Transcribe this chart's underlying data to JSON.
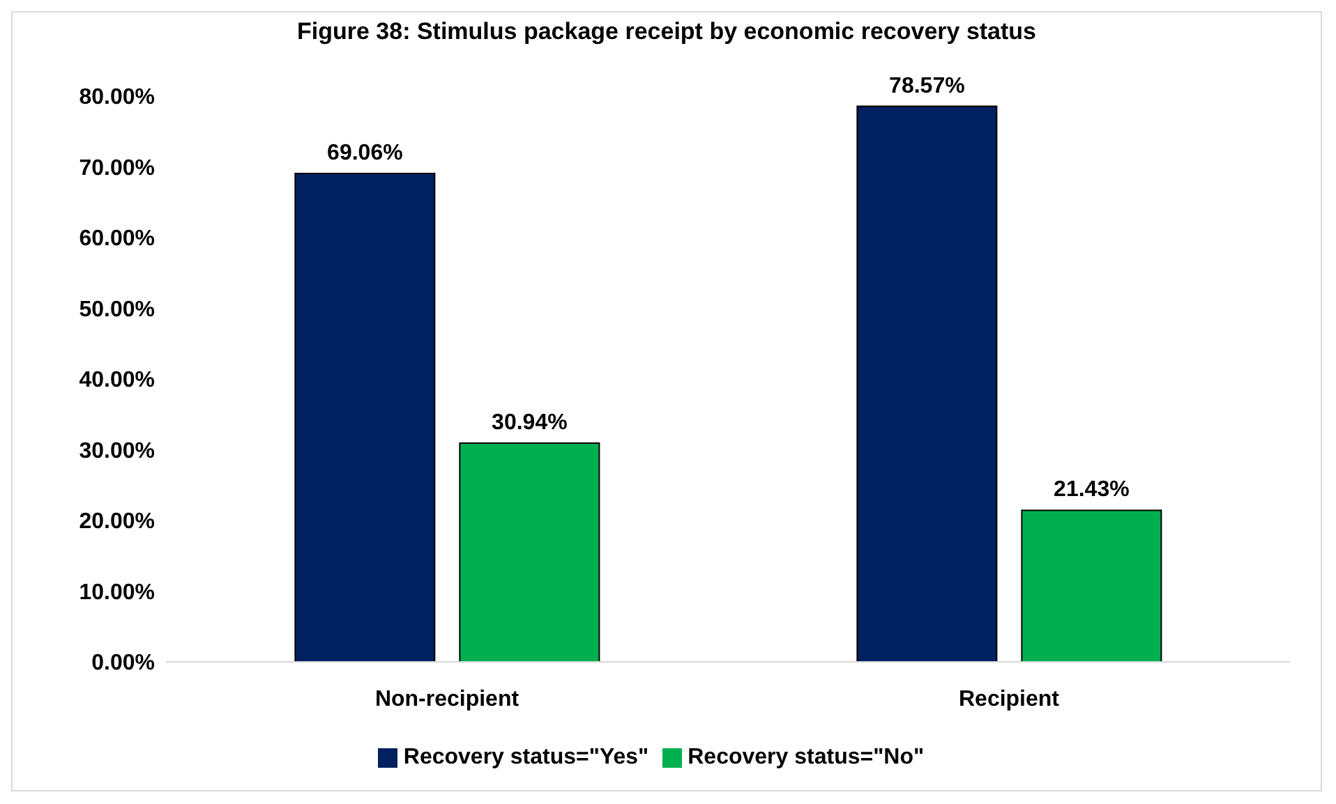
{
  "chart_data": {
    "type": "bar",
    "title": "Figure 38: Stimulus package receipt by economic recovery status",
    "categories": [
      "Non-recipient",
      "Recipient"
    ],
    "series": [
      {
        "name": "Recovery status=\"Yes\"",
        "color": "#002060",
        "values": [
          69.06,
          78.57
        ],
        "value_labels": [
          "69.06%",
          "78.57%"
        ]
      },
      {
        "name": "Recovery status=\"No\"",
        "color": "#00b050",
        "values": [
          30.94,
          21.43
        ],
        "value_labels": [
          "30.94%",
          "21.43%"
        ]
      }
    ],
    "ylim": [
      0,
      80
    ],
    "yticks": [
      {
        "value": 0,
        "label": "0.00%"
      },
      {
        "value": 10,
        "label": "10.00%"
      },
      {
        "value": 20,
        "label": "20.00%"
      },
      {
        "value": 30,
        "label": "30.00%"
      },
      {
        "value": 40,
        "label": "40.00%"
      },
      {
        "value": 50,
        "label": "50.00%"
      },
      {
        "value": 60,
        "label": "60.00%"
      },
      {
        "value": 70,
        "label": "70.00%"
      },
      {
        "value": 80,
        "label": "80.00%"
      }
    ],
    "grid": false,
    "legend": "bottom"
  }
}
